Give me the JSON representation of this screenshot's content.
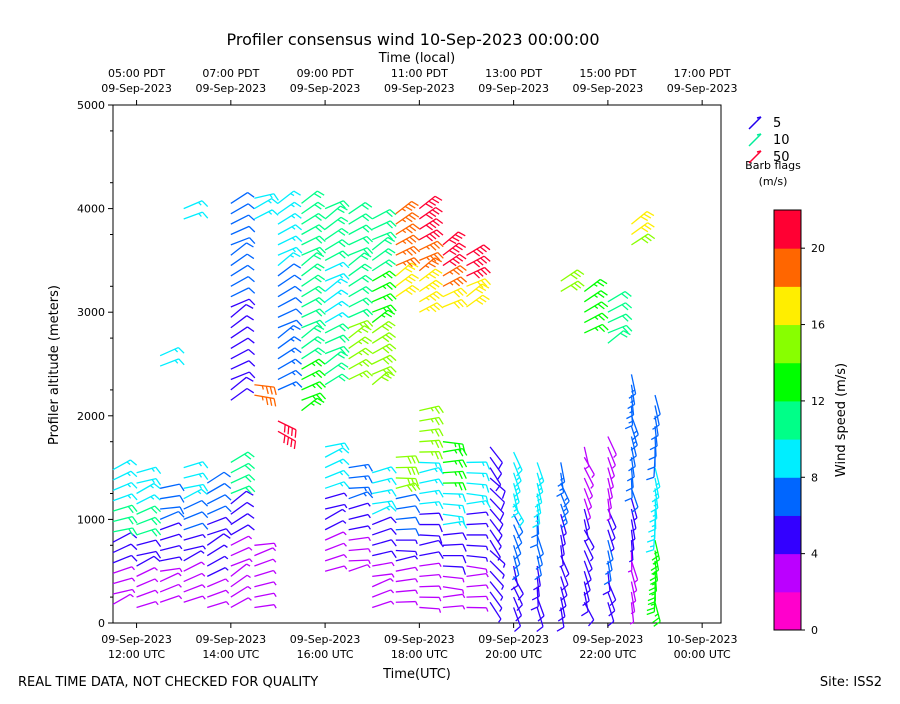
{
  "chart_data": {
    "type": "wind_barbs",
    "title": "Profiler consensus wind 10-Sep-2023 00:00:00",
    "xlabel": "Time(UTC)",
    "xlabel_top": "Time (local)",
    "ylabel": "Profiler altitude (meters)",
    "x_range_hours": [
      11.5,
      24.4
    ],
    "ylim": [
      0,
      5000
    ],
    "y_ticks": [
      0,
      1000,
      2000,
      3000,
      4000,
      5000
    ],
    "x_ticks_bottom": [
      {
        "hour": 12,
        "line1": "09-Sep-2023",
        "line2": "12:00 UTC"
      },
      {
        "hour": 14,
        "line1": "09-Sep-2023",
        "line2": "14:00 UTC"
      },
      {
        "hour": 16,
        "line1": "09-Sep-2023",
        "line2": "16:00 UTC"
      },
      {
        "hour": 18,
        "line1": "09-Sep-2023",
        "line2": "18:00 UTC"
      },
      {
        "hour": 20,
        "line1": "09-Sep-2023",
        "line2": "20:00 UTC"
      },
      {
        "hour": 22,
        "line1": "09-Sep-2023",
        "line2": "22:00 UTC"
      },
      {
        "hour": 24,
        "line1": "10-Sep-2023",
        "line2": "00:00 UTC"
      }
    ],
    "x_ticks_top": [
      {
        "hour": 12,
        "line1": "05:00 PDT",
        "line2": "09-Sep-2023"
      },
      {
        "hour": 14,
        "line1": "07:00 PDT",
        "line2": "09-Sep-2023"
      },
      {
        "hour": 16,
        "line1": "09:00 PDT",
        "line2": "09-Sep-2023"
      },
      {
        "hour": 18,
        "line1": "11:00 PDT",
        "line2": "09-Sep-2023"
      },
      {
        "hour": 20,
        "line1": "13:00 PDT",
        "line2": "09-Sep-2023"
      },
      {
        "hour": 22,
        "line1": "15:00 PDT",
        "line2": "09-Sep-2023"
      },
      {
        "hour": 24,
        "line1": "17:00 PDT",
        "line2": "09-Sep-2023"
      }
    ],
    "barb_legend": [
      {
        "label": "5",
        "color": "#2200ee"
      },
      {
        "label": "10",
        "color": "#00ee99"
      },
      {
        "label": "50",
        "color": "#ff0033"
      }
    ],
    "barb_legend_title": [
      "Barb flags",
      "(m/s)"
    ],
    "colorbar": {
      "label": "Wind speed (m/s)",
      "min": 0,
      "max": 22,
      "ticks": [
        0,
        4,
        8,
        12,
        16,
        20
      ],
      "colors": [
        "#ff00cc",
        "#bb00ff",
        "#3300ff",
        "#0066ff",
        "#00eeff",
        "#00ff88",
        "#00ff00",
        "#88ff00",
        "#ffee00",
        "#ff6600",
        "#ff0033"
      ]
    },
    "profile_times_hours": [
      11.5,
      12.0,
      12.5,
      13.0,
      13.5,
      14.0,
      14.5,
      15.0,
      15.5,
      16.0,
      16.5,
      17.0,
      17.5,
      18.0,
      18.5,
      19.0,
      19.5,
      20.0,
      20.5,
      21.0,
      21.5,
      22.0,
      22.5,
      23.0,
      23.5
    ],
    "segments": [
      {
        "t": 11.5,
        "h0": 180,
        "h1": 1500,
        "speed": [
          3,
          5,
          10,
          8
        ],
        "dir": 70
      },
      {
        "t": 12.0,
        "h0": 150,
        "h1": 1450,
        "speed": [
          2,
          5,
          11,
          8
        ],
        "dir": 70
      },
      {
        "t": 12.5,
        "h0": 200,
        "h1": 1350,
        "speed": [
          2,
          4,
          6
        ],
        "dir": 75
      },
      {
        "t": 12.5,
        "h0": 2480,
        "h1": 2650,
        "speed": [
          8
        ],
        "dir": 60
      },
      {
        "t": 13.0,
        "h0": 200,
        "h1": 1500,
        "speed": [
          3,
          4,
          6,
          8
        ],
        "dir": 70
      },
      {
        "t": 13.0,
        "h0": 3900,
        "h1": 4000,
        "speed": [
          9
        ],
        "dir": 75
      },
      {
        "t": 13.5,
        "h0": 150,
        "h1": 1400,
        "speed": [
          3,
          4,
          5,
          6
        ],
        "dir": 65
      },
      {
        "t": 14.0,
        "h0": 150,
        "h1": 1600,
        "speed": [
          2,
          3,
          5,
          10
        ],
        "dir": 60
      },
      {
        "t": 14.0,
        "h0": 2150,
        "h1": 4050,
        "speed": [
          5,
          6
        ],
        "dir": 60
      },
      {
        "t": 14.5,
        "h0": 150,
        "h1": 750,
        "speed": [
          2,
          3
        ],
        "dir": 75
      },
      {
        "t": 14.5,
        "h0": 2200,
        "h1": 2300,
        "speed": [
          19
        ],
        "dir": 100
      },
      {
        "t": 14.5,
        "h0": 3900,
        "h1": 4100,
        "speed": [
          8
        ],
        "dir": 70
      },
      {
        "t": 15.0,
        "h0": 2250,
        "h1": 4050,
        "speed": [
          7,
          6,
          9
        ],
        "dir": 60
      },
      {
        "t": 15.0,
        "h0": 1850,
        "h1": 1950,
        "speed": [
          21
        ],
        "dir": 120
      },
      {
        "t": 15.5,
        "h0": 2050,
        "h1": 4050,
        "speed": [
          12,
          10,
          11,
          10
        ],
        "dir": 60
      },
      {
        "t": 16.0,
        "h0": 500,
        "h1": 1700,
        "speed": [
          3,
          4,
          9
        ],
        "dir": 70
      },
      {
        "t": 16.0,
        "h0": 2300,
        "h1": 4050,
        "speed": [
          10,
          9,
          11
        ],
        "dir": 60
      },
      {
        "t": 16.5,
        "h0": 500,
        "h1": 1550,
        "speed": [
          3,
          4,
          7
        ],
        "dir": 80
      },
      {
        "t": 16.5,
        "h0": 2350,
        "h1": 4000,
        "speed": [
          14,
          10,
          11
        ],
        "dir": 60
      },
      {
        "t": 17.0,
        "h0": 150,
        "h1": 1450,
        "speed": [
          2,
          5,
          8
        ],
        "dir": 75
      },
      {
        "t": 17.0,
        "h0": 2300,
        "h1": 3950,
        "speed": [
          15,
          12,
          10
        ],
        "dir": 60
      },
      {
        "t": 17.5,
        "h0": 200,
        "h1": 1650,
        "speed": [
          3,
          4,
          6,
          15
        ],
        "dir": 85
      },
      {
        "t": 17.5,
        "h0": 3150,
        "h1": 4000,
        "speed": [
          16,
          18,
          19
        ],
        "dir": 60
      },
      {
        "t": 18.0,
        "h0": 150,
        "h1": 2050,
        "speed": [
          3,
          5,
          9,
          14
        ],
        "dir": 85
      },
      {
        "t": 18.0,
        "h0": 3000,
        "h1": 4000,
        "speed": [
          17,
          19,
          21
        ],
        "dir": 60
      },
      {
        "t": 18.5,
        "h0": 150,
        "h1": 1800,
        "speed": [
          2,
          5,
          8,
          12
        ],
        "dir": 90
      },
      {
        "t": 18.5,
        "h0": 3050,
        "h1": 3650,
        "speed": [
          16,
          19,
          21
        ],
        "dir": 60
      },
      {
        "t": 19.0,
        "h0": 150,
        "h1": 1600,
        "speed": [
          3,
          4,
          9
        ],
        "dir": 90
      },
      {
        "t": 19.0,
        "h0": 3050,
        "h1": 3600,
        "speed": [
          16,
          21
        ],
        "dir": 60
      },
      {
        "t": 19.5,
        "h0": 200,
        "h1": 1750,
        "speed": [
          4,
          5
        ],
        "dir": 140
      },
      {
        "t": 20.0,
        "h0": 150,
        "h1": 1650,
        "speed": [
          5,
          6,
          8
        ],
        "dir": 160
      },
      {
        "t": 20.5,
        "h0": 150,
        "h1": 1600,
        "speed": [
          5,
          6,
          8
        ],
        "dir": 170
      },
      {
        "t": 21.0,
        "h0": 150,
        "h1": 1600,
        "speed": [
          5,
          4,
          7
        ],
        "dir": 165
      },
      {
        "t": 21.0,
        "h0": 3200,
        "h1": 3350,
        "speed": [
          15
        ],
        "dir": 60
      },
      {
        "t": 21.5,
        "h0": 200,
        "h1": 1700,
        "speed": [
          5,
          4,
          2
        ],
        "dir": 160
      },
      {
        "t": 21.5,
        "h0": 2800,
        "h1": 3250,
        "speed": [
          12
        ],
        "dir": 60
      },
      {
        "t": 22.0,
        "h0": 200,
        "h1": 1850,
        "speed": [
          5,
          6,
          4,
          3,
          2
        ],
        "dir": 165
      },
      {
        "t": 22.0,
        "h0": 2700,
        "h1": 3100,
        "speed": [
          11
        ],
        "dir": 60
      },
      {
        "t": 22.5,
        "h0": 200,
        "h1": 2400,
        "speed": [
          3,
          4,
          6,
          7
        ],
        "dir": 170
      },
      {
        "t": 22.5,
        "h0": 3650,
        "h1": 3850,
        "speed": [
          15,
          16
        ],
        "dir": 60
      },
      {
        "t": 23.0,
        "h0": 200,
        "h1": 2250,
        "speed": [
          12,
          8,
          6
        ],
        "dir": 175
      }
    ],
    "footer_left": "REAL TIME DATA, NOT CHECKED FOR QUALITY",
    "footer_right": "Site: ISS2"
  }
}
